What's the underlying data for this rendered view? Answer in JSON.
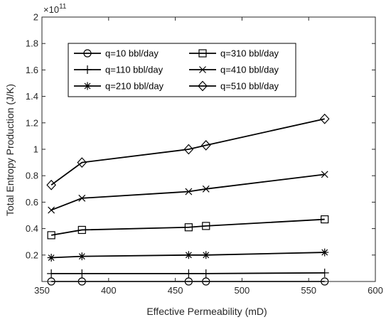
{
  "chart_data": {
    "type": "line",
    "xlabel": "Effective Permeability (mD)",
    "ylabel": "Total Entropy Production (J/K)",
    "xlim": [
      350,
      600
    ],
    "ylim": [
      0,
      2
    ],
    "y_exponent_label": "×10",
    "y_exponent_power": "11",
    "x_ticks": [
      "350",
      "400",
      "450",
      "500",
      "550",
      "600"
    ],
    "y_ticks": [
      "0.2",
      "0.4",
      "0.6",
      "0.8",
      "1",
      "1.2",
      "1.4",
      "1.6",
      "1.8",
      "2"
    ],
    "legend_placement": "top-left",
    "x": [
      357,
      380,
      460,
      473,
      562
    ],
    "series": [
      {
        "name": "q=10 bbl/day",
        "marker": "circle",
        "values": [
          0.0,
          0.0,
          0.0,
          0.0,
          0.0
        ]
      },
      {
        "name": "q=110 bbl/day",
        "marker": "plus",
        "values": [
          0.06,
          0.06,
          0.06,
          0.06,
          0.065
        ]
      },
      {
        "name": "q=210 bbl/day",
        "marker": "star",
        "values": [
          0.18,
          0.19,
          0.2,
          0.2,
          0.22
        ]
      },
      {
        "name": "q=310 bbl/day",
        "marker": "square",
        "values": [
          0.35,
          0.39,
          0.41,
          0.42,
          0.47
        ]
      },
      {
        "name": "q=410 bbl/day",
        "marker": "x",
        "values": [
          0.54,
          0.63,
          0.68,
          0.7,
          0.81
        ]
      },
      {
        "name": "q=510 bbl/day",
        "marker": "diamond",
        "values": [
          0.73,
          0.9,
          1.0,
          1.03,
          1.23
        ]
      }
    ]
  }
}
